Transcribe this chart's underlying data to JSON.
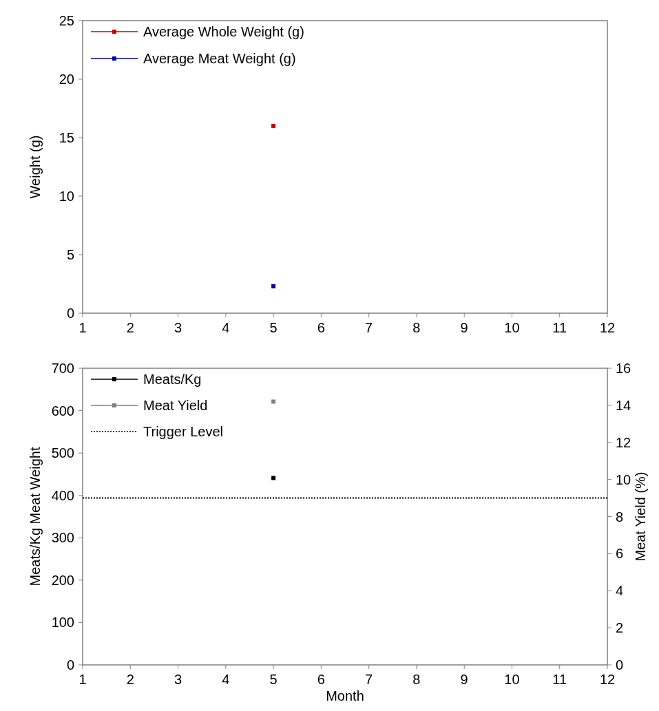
{
  "chart_data": [
    {
      "type": "line",
      "ylabel": "Weight (g)",
      "x": [
        5
      ],
      "xlim": [
        1,
        12
      ],
      "xticks": [
        1,
        2,
        3,
        4,
        5,
        6,
        7,
        8,
        9,
        10,
        11,
        12
      ],
      "ylim": [
        0,
        25
      ],
      "yticks": [
        0,
        5,
        10,
        15,
        20,
        25
      ],
      "grid": false,
      "legend": "top left",
      "marker": "square",
      "line_style": "solid",
      "series": [
        {
          "name": "Average Whole Weight (g)",
          "color": "#cc0000",
          "values": [
            16
          ]
        },
        {
          "name": "Average Meat Weight (g)",
          "color": "#0000aa",
          "values": [
            2.3
          ]
        }
      ]
    },
    {
      "type": "line",
      "xlabel": "Month",
      "ylabel": "Meats/Kg Meat Weight",
      "y2label": "Meat Yield (%)",
      "x": [
        5
      ],
      "xlim": [
        1,
        12
      ],
      "xticks": [
        1,
        2,
        3,
        4,
        5,
        6,
        7,
        8,
        9,
        10,
        11,
        12
      ],
      "ylim": [
        0,
        700
      ],
      "yticks": [
        0,
        100,
        200,
        300,
        400,
        500,
        600,
        700
      ],
      "y2lim": [
        0,
        16
      ],
      "y2ticks": [
        0,
        2,
        4,
        6,
        8,
        10,
        12,
        14,
        16
      ],
      "grid": false,
      "legend": "top left",
      "marker": "square",
      "line_style": "solid",
      "series": [
        {
          "name": "Meats/Kg",
          "color": "#000000",
          "values": [
            441
          ]
        },
        {
          "name": "Meat Yield",
          "color": "#808080",
          "values": [
            14.2
          ],
          "axis": "y2"
        }
      ],
      "ref_lines": [
        {
          "axis": "y2",
          "value": 9,
          "label": "Trigger Level",
          "color": "#000000",
          "line_style": "dotted"
        }
      ]
    }
  ]
}
